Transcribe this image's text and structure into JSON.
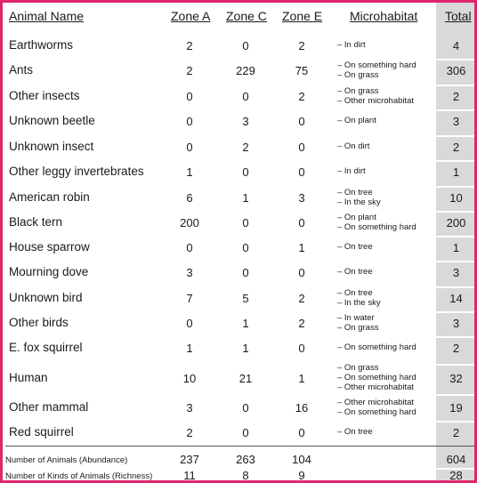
{
  "headers": {
    "animal": "Animal Name",
    "zone_a": "Zone A",
    "zone_c": "Zone C",
    "zone_e": "Zone E",
    "microhabitat": "Microhabitat",
    "total": "Total"
  },
  "rows": [
    {
      "name": "Earthworms",
      "a": "2",
      "c": "0",
      "e": "2",
      "micro": [
        "– In dirt"
      ],
      "total": "4"
    },
    {
      "name": "Ants",
      "a": "2",
      "c": "229",
      "e": "75",
      "micro": [
        "– On something hard",
        "– On grass"
      ],
      "total": "306"
    },
    {
      "name": "Other insects",
      "a": "0",
      "c": "0",
      "e": "2",
      "micro": [
        "– On grass",
        "– Other microhabitat"
      ],
      "total": "2"
    },
    {
      "name": "Unknown beetle",
      "a": "0",
      "c": "3",
      "e": "0",
      "micro": [
        "– On plant"
      ],
      "total": "3"
    },
    {
      "name": "Unknown insect",
      "a": "0",
      "c": "2",
      "e": "0",
      "micro": [
        "– On dirt"
      ],
      "total": "2"
    },
    {
      "name": "Other leggy invertebrates",
      "a": "1",
      "c": "0",
      "e": "0",
      "micro": [
        "– In dirt"
      ],
      "total": "1"
    },
    {
      "name": "American robin",
      "a": "6",
      "c": "1",
      "e": "3",
      "micro": [
        "– On tree",
        "– In the sky"
      ],
      "total": "10"
    },
    {
      "name": "Black tern",
      "a": "200",
      "c": "0",
      "e": "0",
      "micro": [
        "– On plant",
        "– On something hard"
      ],
      "total": "200"
    },
    {
      "name": "House sparrow",
      "a": "0",
      "c": "0",
      "e": "1",
      "micro": [
        "– On tree"
      ],
      "total": "1"
    },
    {
      "name": "Mourning dove",
      "a": "3",
      "c": "0",
      "e": "0",
      "micro": [
        "– On tree"
      ],
      "total": "3"
    },
    {
      "name": "Unknown bird",
      "a": "7",
      "c": "5",
      "e": "2",
      "micro": [
        "– On tree",
        "– In the sky"
      ],
      "total": "14"
    },
    {
      "name": "Other birds",
      "a": "0",
      "c": "1",
      "e": "2",
      "micro": [
        "– In water",
        "– On grass"
      ],
      "total": "3"
    },
    {
      "name": "E. fox squirrel",
      "a": "1",
      "c": "1",
      "e": "0",
      "micro": [
        "– On something hard"
      ],
      "total": "2"
    },
    {
      "name": "Human",
      "a": "10",
      "c": "21",
      "e": "1",
      "micro": [
        "– On grass",
        "– On something hard",
        "– Other microhabitat"
      ],
      "total": "32"
    },
    {
      "name": "Other mammal",
      "a": "3",
      "c": "0",
      "e": "16",
      "micro": [
        "– Other microhabitat",
        "– On something hard"
      ],
      "total": "19"
    },
    {
      "name": "Red squirrel",
      "a": "2",
      "c": "0",
      "e": "0",
      "micro": [
        "– On tree"
      ],
      "total": "2"
    }
  ],
  "footer": {
    "abundance": {
      "label": "Number of Animals (Abundance)",
      "a": "237",
      "c": "263",
      "e": "104",
      "total": "604"
    },
    "richness": {
      "label": "Number of Kinds of Animals (Richness)",
      "a": "11",
      "c": "8",
      "e": "9",
      "total": "28"
    }
  },
  "colors": {
    "border": "#e0256b",
    "total_column": "#d9d9d9"
  }
}
